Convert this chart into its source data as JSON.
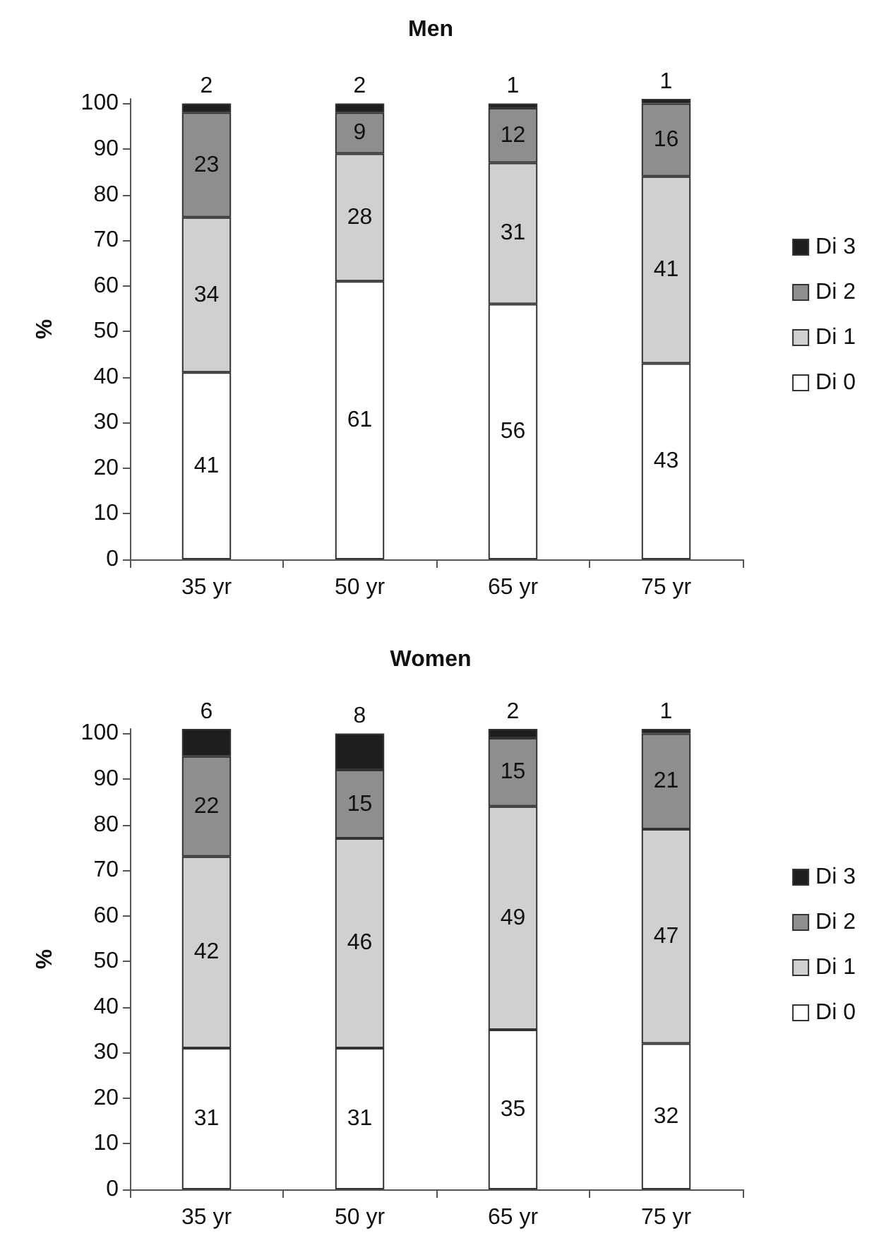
{
  "chart_data": [
    {
      "type": "bar",
      "title": "Men",
      "ylabel": "%",
      "categories": [
        "35 yr",
        "50 yr",
        "65 yr",
        "75 yr"
      ],
      "stacked": true,
      "data_labels": true,
      "legend": "right",
      "grid": false,
      "ylim": [
        0,
        101
      ],
      "yticks": [
        0,
        10,
        20,
        30,
        40,
        50,
        60,
        70,
        80,
        90,
        100
      ],
      "series": [
        {
          "name": "Di 0",
          "color": "#ffffff",
          "values": [
            41,
            61,
            56,
            43
          ]
        },
        {
          "name": "Di 1",
          "color": "#d0d0d0",
          "values": [
            34,
            28,
            31,
            41
          ]
        },
        {
          "name": "Di 2",
          "color": "#8e8e8e",
          "values": [
            23,
            9,
            12,
            16
          ]
        },
        {
          "name": "Di 3",
          "color": "#1e1e1e",
          "values": [
            2,
            2,
            1,
            1
          ]
        }
      ]
    },
    {
      "type": "bar",
      "title": "Women",
      "ylabel": "%",
      "categories": [
        "35 yr",
        "50 yr",
        "65 yr",
        "75 yr"
      ],
      "stacked": true,
      "data_labels": true,
      "legend": "right",
      "grid": false,
      "ylim": [
        0,
        101
      ],
      "yticks": [
        0,
        10,
        20,
        30,
        40,
        50,
        60,
        70,
        80,
        90,
        100
      ],
      "series": [
        {
          "name": "Di 0",
          "color": "#ffffff",
          "values": [
            31,
            31,
            35,
            32
          ]
        },
        {
          "name": "Di 1",
          "color": "#d0d0d0",
          "values": [
            42,
            46,
            49,
            47
          ]
        },
        {
          "name": "Di 2",
          "color": "#8e8e8e",
          "values": [
            22,
            15,
            15,
            21
          ]
        },
        {
          "name": "Di 3",
          "color": "#1e1e1e",
          "values": [
            6,
            8,
            2,
            1
          ]
        }
      ]
    }
  ]
}
